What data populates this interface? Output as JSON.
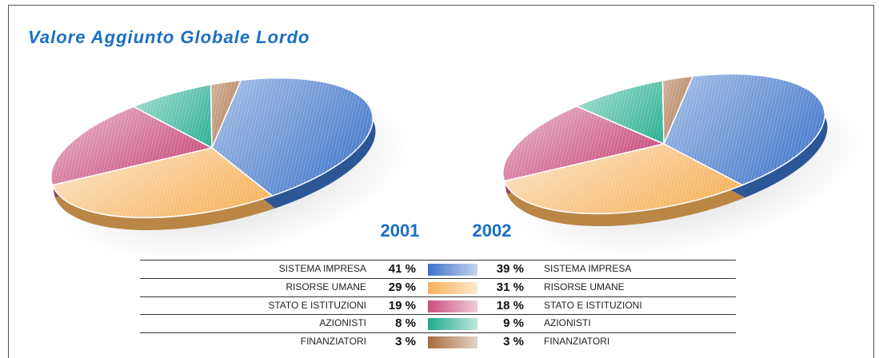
{
  "title": "Valore Aggiunto Globale Lordo",
  "chart_data": [
    {
      "type": "pie",
      "title": "2001",
      "categories": [
        "SISTEMA IMPRESA",
        "RISORSE UMANE",
        "STATO E ISTITUZIONI",
        "AZIONISTI",
        "FINANZIATORI"
      ],
      "values": [
        41,
        29,
        19,
        8,
        3
      ],
      "value_labels": [
        "41 %",
        "29 %",
        "19 %",
        "8 %",
        "3 %"
      ],
      "colors": [
        "#3b72c8",
        "#f6b25c",
        "#c9507f",
        "#1fab8c",
        "#a86b3e"
      ]
    },
    {
      "type": "pie",
      "title": "2002",
      "categories": [
        "SISTEMA IMPRESA",
        "RISORSE UMANE",
        "STATO E ISTITUZIONI",
        "AZIONISTI",
        "FINANZIATORI"
      ],
      "values": [
        39,
        31,
        18,
        9,
        3
      ],
      "value_labels": [
        "39 %",
        "31 %",
        "18 %",
        "9 %",
        "3 %"
      ],
      "colors": [
        "#3b72c8",
        "#f6b25c",
        "#c9507f",
        "#1fab8c",
        "#a86b3e"
      ]
    }
  ]
}
